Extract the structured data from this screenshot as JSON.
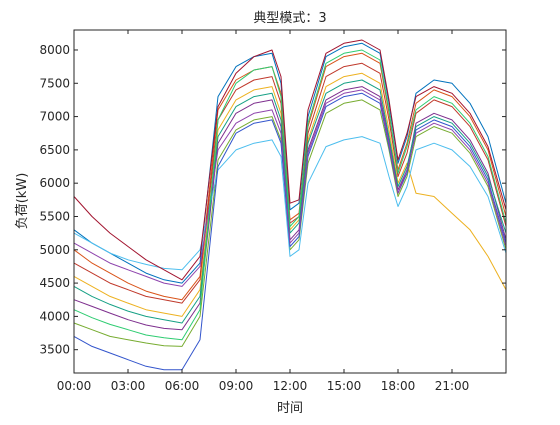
{
  "chart_data": {
    "type": "line",
    "title": "典型模式：3",
    "xlabel": "时间",
    "ylabel": "负荷(kW)",
    "x_range": [
      0,
      24
    ],
    "ylim": [
      3150,
      8300
    ],
    "x_ticks": [
      {
        "v": 0,
        "label": "00:00"
      },
      {
        "v": 3,
        "label": "03:00"
      },
      {
        "v": 6,
        "label": "06:00"
      },
      {
        "v": 9,
        "label": "09:00"
      },
      {
        "v": 12,
        "label": "12:00"
      },
      {
        "v": 15,
        "label": "15:00"
      },
      {
        "v": 18,
        "label": "18:00"
      },
      {
        "v": 21,
        "label": "21:00"
      }
    ],
    "y_ticks": [
      3500,
      4000,
      4500,
      5000,
      5500,
      6000,
      6500,
      7000,
      7500,
      8000
    ],
    "grid": false,
    "x": [
      0,
      1,
      2,
      3,
      4,
      5,
      6,
      7,
      8,
      9,
      10,
      11,
      11.5,
      12,
      12.5,
      13,
      14,
      15,
      16,
      17,
      17.5,
      18,
      18.5,
      19,
      20,
      21,
      22,
      23,
      24
    ],
    "series": [
      {
        "color": "#0072BD",
        "values": [
          5300,
          5100,
          4950,
          4800,
          4650,
          4550,
          4500,
          4800,
          7300,
          7750,
          7900,
          7950,
          7500,
          5600,
          5700,
          7000,
          7900,
          8050,
          8100,
          7950,
          7200,
          6300,
          6700,
          7350,
          7550,
          7500,
          7200,
          6700,
          5700
        ]
      },
      {
        "color": "#D95319",
        "values": [
          5000,
          4800,
          4650,
          4500,
          4380,
          4300,
          4250,
          4600,
          7100,
          7550,
          7700,
          7750,
          7350,
          5450,
          5550,
          6850,
          7750,
          7900,
          7950,
          7800,
          7050,
          6200,
          6600,
          7200,
          7400,
          7300,
          7000,
          6500,
          5500
        ]
      },
      {
        "color": "#EDB120",
        "values": [
          4600,
          4450,
          4300,
          4200,
          4100,
          4050,
          4000,
          4400,
          6800,
          7250,
          7400,
          7450,
          7050,
          5300,
          5450,
          6650,
          7450,
          7600,
          7650,
          7500,
          6800,
          6000,
          6300,
          5850,
          5800,
          5550,
          5300,
          4900,
          4400
        ]
      },
      {
        "color": "#7E2F8E",
        "values": [
          4250,
          4150,
          4050,
          3950,
          3870,
          3820,
          3800,
          4200,
          6600,
          7050,
          7200,
          7250,
          6850,
          5150,
          5300,
          6500,
          7250,
          7400,
          7450,
          7300,
          6650,
          5900,
          6200,
          6900,
          7050,
          6950,
          6650,
          6150,
          5150
        ]
      },
      {
        "color": "#77AC30",
        "values": [
          3900,
          3800,
          3700,
          3650,
          3600,
          3560,
          3550,
          4000,
          6350,
          6800,
          6950,
          7000,
          6650,
          5000,
          5150,
          6300,
          7050,
          7200,
          7250,
          7100,
          6500,
          5800,
          6100,
          6700,
          6850,
          6750,
          6450,
          5950,
          5000
        ]
      },
      {
        "color": "#4DBEEE",
        "values": [
          5250,
          5100,
          4950,
          4850,
          4780,
          4720,
          4700,
          5000,
          6200,
          6500,
          6600,
          6650,
          6400,
          4900,
          5000,
          6000,
          6550,
          6650,
          6700,
          6600,
          6100,
          5650,
          5950,
          6500,
          6600,
          6500,
          6250,
          5800,
          4950
        ]
      },
      {
        "color": "#A2142F",
        "values": [
          5800,
          5500,
          5250,
          5050,
          4850,
          4700,
          4550,
          4900,
          7150,
          7650,
          7900,
          8000,
          7600,
          5700,
          5750,
          7100,
          7950,
          8100,
          8150,
          8000,
          7250,
          6350,
          6750,
          7300,
          7450,
          7350,
          7050,
          6550,
          5600
        ]
      },
      {
        "color": "#3355CC",
        "values": [
          3700,
          3550,
          3450,
          3350,
          3250,
          3200,
          3200,
          3650,
          6250,
          6750,
          6900,
          6950,
          6600,
          5050,
          5200,
          6400,
          7150,
          7300,
          7350,
          7200,
          6550,
          5850,
          6150,
          6800,
          6950,
          6850,
          6550,
          6050,
          5100
        ]
      },
      {
        "color": "#C0392B",
        "values": [
          4800,
          4650,
          4500,
          4400,
          4300,
          4250,
          4200,
          4550,
          6950,
          7400,
          7550,
          7600,
          7200,
          5400,
          5500,
          6750,
          7600,
          7750,
          7800,
          7650,
          6950,
          6100,
          6450,
          7050,
          7250,
          7150,
          6850,
          6350,
          5350
        ]
      },
      {
        "color": "#16A085",
        "values": [
          4450,
          4300,
          4180,
          4080,
          4000,
          3950,
          3900,
          4300,
          6700,
          7150,
          7300,
          7350,
          6950,
          5250,
          5400,
          6600,
          7350,
          7500,
          7550,
          7400,
          6700,
          5950,
          6250,
          6850,
          7000,
          6900,
          6600,
          6100,
          5250
        ]
      },
      {
        "color": "#8E44AD",
        "values": [
          5100,
          4950,
          4800,
          4700,
          4600,
          4500,
          4450,
          4750,
          6500,
          6900,
          7050,
          7100,
          6750,
          5100,
          5250,
          6450,
          7200,
          7350,
          7400,
          7250,
          6600,
          5850,
          6200,
          6750,
          6900,
          6800,
          6500,
          6000,
          5050
        ]
      },
      {
        "color": "#2ECC71",
        "values": [
          4100,
          3980,
          3880,
          3800,
          3720,
          3680,
          3650,
          4100,
          6950,
          7500,
          7700,
          7750,
          7300,
          5350,
          5500,
          6900,
          7800,
          7950,
          8000,
          7850,
          7100,
          6150,
          6550,
          7100,
          7300,
          7200,
          6900,
          6400,
          5400
        ]
      }
    ]
  }
}
